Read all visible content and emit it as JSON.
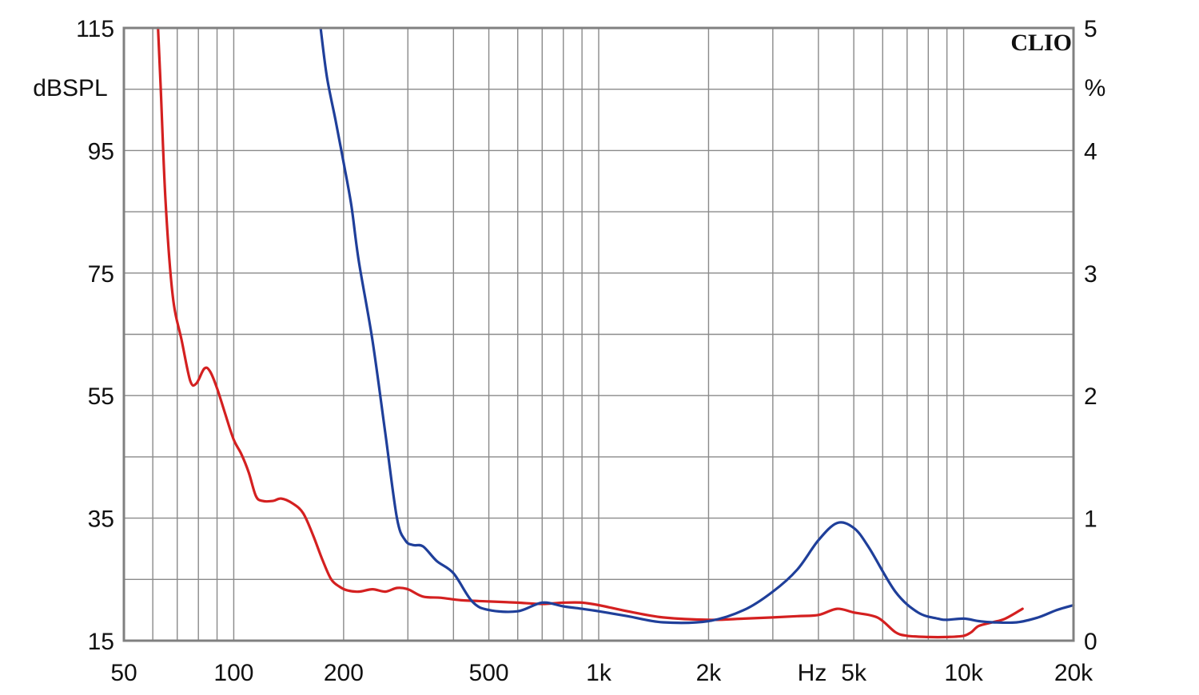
{
  "chart_data": {
    "type": "line",
    "title": "",
    "brand_label": "CLIO",
    "x_axis": {
      "scale": "log",
      "range": [
        50,
        20000
      ],
      "unit_label": "Hz",
      "tick_labels": [
        {
          "value": 50,
          "label": "50"
        },
        {
          "value": 100,
          "label": "100"
        },
        {
          "value": 200,
          "label": "200"
        },
        {
          "value": 500,
          "label": "500"
        },
        {
          "value": 1000,
          "label": "1k"
        },
        {
          "value": 2000,
          "label": "2k"
        },
        {
          "value": 5000,
          "label": "5k"
        },
        {
          "value": 10000,
          "label": "10k"
        },
        {
          "value": 20000,
          "label": "20k"
        }
      ]
    },
    "y_left": {
      "range": [
        15,
        115
      ],
      "unit_label": "dBSPL",
      "tick_labels": [
        {
          "value": 115,
          "label": "115"
        },
        {
          "value": 95,
          "label": "95"
        },
        {
          "value": 75,
          "label": "75"
        },
        {
          "value": 55,
          "label": "55"
        },
        {
          "value": 35,
          "label": "35"
        },
        {
          "value": 15,
          "label": "15"
        }
      ]
    },
    "y_right": {
      "range": [
        0,
        5
      ],
      "unit_label": "%",
      "tick_labels": [
        {
          "value": 5,
          "label": "5"
        },
        {
          "value": 4,
          "label": "4"
        },
        {
          "value": 3,
          "label": "3"
        },
        {
          "value": 2,
          "label": "2"
        },
        {
          "value": 1,
          "label": "1"
        },
        {
          "value": 0,
          "label": "0"
        }
      ]
    },
    "grid": true,
    "legend": "none",
    "series": [
      {
        "color": "#d42020",
        "axis": "right",
        "points": [
          [
            62,
            5.0
          ],
          [
            63,
            4.55
          ],
          [
            65,
            3.6
          ],
          [
            68,
            2.82
          ],
          [
            72,
            2.45
          ],
          [
            76,
            2.12
          ],
          [
            79,
            2.1
          ],
          [
            83,
            2.22
          ],
          [
            86,
            2.2
          ],
          [
            90,
            2.06
          ],
          [
            95,
            1.84
          ],
          [
            100,
            1.64
          ],
          [
            105,
            1.52
          ],
          [
            110,
            1.37
          ],
          [
            115,
            1.18
          ],
          [
            120,
            1.14
          ],
          [
            128,
            1.14
          ],
          [
            135,
            1.16
          ],
          [
            145,
            1.12
          ],
          [
            155,
            1.04
          ],
          [
            165,
            0.86
          ],
          [
            175,
            0.66
          ],
          [
            185,
            0.5
          ],
          [
            195,
            0.44
          ],
          [
            205,
            0.41
          ],
          [
            220,
            0.4
          ],
          [
            240,
            0.42
          ],
          [
            260,
            0.4
          ],
          [
            280,
            0.43
          ],
          [
            300,
            0.42
          ],
          [
            330,
            0.36
          ],
          [
            370,
            0.35
          ],
          [
            420,
            0.33
          ],
          [
            500,
            0.32
          ],
          [
            600,
            0.31
          ],
          [
            700,
            0.3
          ],
          [
            800,
            0.31
          ],
          [
            900,
            0.31
          ],
          [
            1000,
            0.29
          ],
          [
            1200,
            0.24
          ],
          [
            1500,
            0.19
          ],
          [
            2000,
            0.17
          ],
          [
            2500,
            0.18
          ],
          [
            3000,
            0.19
          ],
          [
            3500,
            0.2
          ],
          [
            4000,
            0.21
          ],
          [
            4500,
            0.26
          ],
          [
            5000,
            0.23
          ],
          [
            5800,
            0.19
          ],
          [
            6500,
            0.07
          ],
          [
            7000,
            0.04
          ],
          [
            8000,
            0.03
          ],
          [
            9000,
            0.03
          ],
          [
            10000,
            0.04
          ],
          [
            10500,
            0.07
          ],
          [
            11000,
            0.12
          ],
          [
            12000,
            0.15
          ],
          [
            13000,
            0.18
          ],
          [
            14500,
            0.26
          ]
        ]
      },
      {
        "color": "#1f3f9a",
        "axis": "right",
        "points": [
          [
            173,
            5.0
          ],
          [
            180,
            4.6
          ],
          [
            190,
            4.25
          ],
          [
            200,
            3.9
          ],
          [
            210,
            3.55
          ],
          [
            220,
            3.1
          ],
          [
            240,
            2.45
          ],
          [
            260,
            1.7
          ],
          [
            280,
            1.0
          ],
          [
            295,
            0.82
          ],
          [
            310,
            0.78
          ],
          [
            330,
            0.77
          ],
          [
            360,
            0.65
          ],
          [
            400,
            0.55
          ],
          [
            450,
            0.32
          ],
          [
            500,
            0.25
          ],
          [
            600,
            0.24
          ],
          [
            700,
            0.31
          ],
          [
            800,
            0.28
          ],
          [
            900,
            0.26
          ],
          [
            1000,
            0.24
          ],
          [
            1200,
            0.2
          ],
          [
            1500,
            0.15
          ],
          [
            2000,
            0.16
          ],
          [
            2500,
            0.25
          ],
          [
            3000,
            0.4
          ],
          [
            3500,
            0.58
          ],
          [
            4000,
            0.82
          ],
          [
            4500,
            0.96
          ],
          [
            5000,
            0.92
          ],
          [
            5500,
            0.76
          ],
          [
            6500,
            0.4
          ],
          [
            7500,
            0.23
          ],
          [
            8500,
            0.18
          ],
          [
            9000,
            0.17
          ],
          [
            10000,
            0.18
          ],
          [
            11000,
            0.16
          ],
          [
            12000,
            0.15
          ],
          [
            14000,
            0.15
          ],
          [
            16000,
            0.19
          ],
          [
            18000,
            0.25
          ],
          [
            20000,
            0.29
          ]
        ]
      }
    ]
  }
}
